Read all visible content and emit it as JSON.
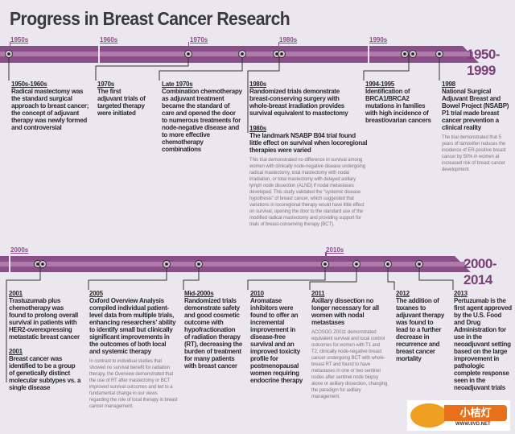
{
  "title": "Progress in Breast Cancer Research",
  "colors": {
    "bar": "#8a4f88",
    "stripe": "#b07aab",
    "background": "#ebe7ef"
  },
  "top": {
    "era": "1950-1999",
    "decades": [
      "1950s",
      "1960s",
      "1970s",
      "1980s",
      "1990s"
    ],
    "events": [
      {
        "date": "1950s-1960s",
        "headline": "Radical mastectomy was the standard surgical approach to breast cancer; the concept of adjuvant therapy was newly formed and controversial"
      },
      {
        "date": "1970s",
        "headline": "The first adjuvant trials of targeted therapy were initiated"
      },
      {
        "date": "Late 1970s",
        "headline": "Combination chemotherapy as adjuvant treatment became the standard of care and opened the door to numerous treatments for node-negative disease and to more effective chemotherapy combinations"
      },
      {
        "date": "1980s",
        "headline": "Randomized trials demonstrate breast-conserving surgery with whole-breast irradiation provides survival equivalent to mastectomy"
      },
      {
        "date": "1980s",
        "headline": "The landmark NSABP B04 trial found little effect on survival when locoregional therapies were varied",
        "body": "This trial demonstrated no difference in survival among women with clinically node-negative disease undergoing radical mastectomy, total mastectomy with nodal irradiation, or total mastectomy with delayed axillary lymph node dissection (ALND) if nodal metastases developed. This study validated the \"systemic disease hypothesis\" of breast cancer, which suggested that variations in locoregional therapy would have little effect on survival, opening the door to the standard use of the modified radical mastectomy and providing support for trials of breast-conserving therapy (BCT)."
      },
      {
        "date": "1994-1995",
        "headline": "Identification of BRCA1/BRCA2 mutations in families with high incidence of breast/ovarian cancers"
      },
      {
        "date": "1998",
        "headline": "National Surgical Adjuvant Breast and Bowel Project (NSABP) P1 trial made breast cancer prevention a clinical reality",
        "body": "The trial demonstrated that 5 years of tamoxifen reduces the incidence of ER-positive breast cancer by 50% in women at increased risk of breast cancer development."
      }
    ]
  },
  "bottom": {
    "era": "2000-2014",
    "decades": [
      "2000s",
      "2010s"
    ],
    "events": [
      {
        "date": "2001",
        "headline": "Trastuzumab plus chemotherapy was found to prolong overall survival in patients with HER2-overexpressing metastatic breast cancer"
      },
      {
        "date": "2001",
        "headline": "Breast cancer was identified to be a group of genetically distinct molecular subtypes vs. a single disease"
      },
      {
        "date": "2005",
        "headline": "Oxford Overview Analysis compiled individual patient-level data from multiple trials, enhancing researchers' ability to identify small but clinically significant improvements in the outcomes of both local and systemic therapy",
        "body": "In contrast to individual studies that showed no survival benefit for radiation therapy, the Overview demonstrated that the use of RT after mastectomy or BCT improved survival outcomes and led to a fundamental change in our views regarding the role of local therapy in breast cancer management."
      },
      {
        "date": "Mid-2000s",
        "headline": "Randomized trials demonstrate safety and good cosmetic outcome with hypofractionation of radiation therapy (RT), decreasing the burden of treatment for many patients with breast cancer"
      },
      {
        "date": "2010",
        "headline": "Aromatase inhibitors were found to offer an incremental improvement in disease-free survival and an improved toxicity profile for postmenopausal women requiring endocrine therapy"
      },
      {
        "date": "2011",
        "headline": "Axillary dissection no longer necessary for all women with nodal metastases",
        "body": "ACOSOG Z0011 demonstrated equivalent survival and local control outcomes for women with T1 and T2, clinically node-negative breast cancer undergoing BCT with whole-breast RT and found to have metastases in one or two sentinel nodes after sentinel node biopsy alone or axillary dissection, changing the paradigm for axillary management."
      },
      {
        "date": "2012",
        "headline": "The addition of taxanes to adjuvant therapy was found to lead to a further decrease in recurrence and breast cancer mortality"
      },
      {
        "date": "2013",
        "headline": "Pertuzumab is the first agent approved by the U.S. Food and Drug Administration for use in the neoadjuvant setting based on the large improvement in pathologic complete response seen in the neoadjuvant trials"
      }
    ]
  },
  "watermark": {
    "logo_text": "小桔灯",
    "url": "WWW.IIVD.NET"
  }
}
